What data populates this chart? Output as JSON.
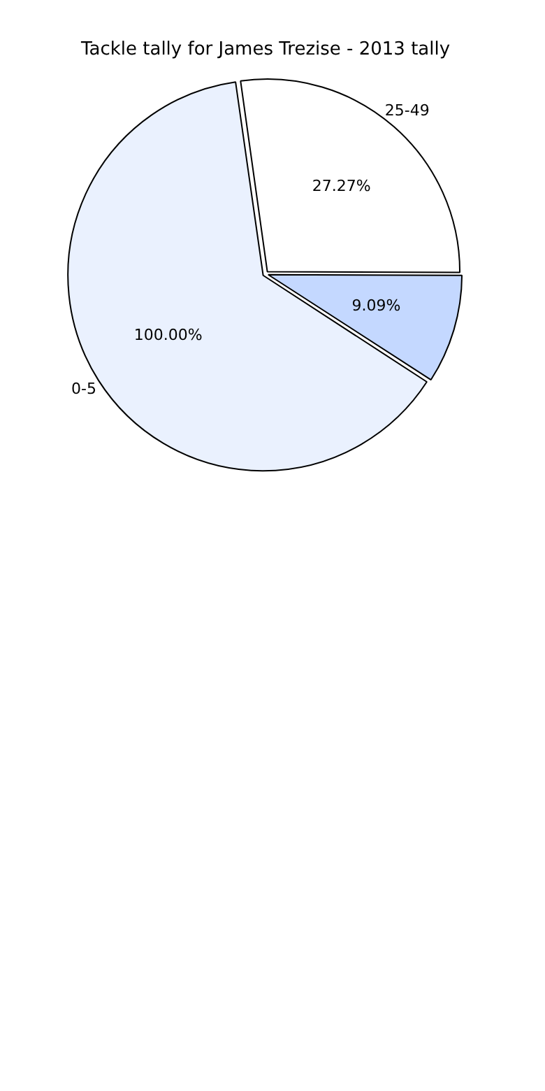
{
  "chart_data": {
    "type": "pie",
    "title": "Tackle tally for James Trezise - 2013 tally",
    "categories": [
      "25-49",
      null,
      "0-5"
    ],
    "values": [
      27.27,
      9.09,
      63.64
    ],
    "value_labels": [
      "27.27%",
      "9.09%",
      null
    ],
    "annotations": [
      "100.00%"
    ],
    "colors": [
      "#ffffff",
      "#c4d8ff",
      "#eaf1fe"
    ],
    "legend": false
  }
}
